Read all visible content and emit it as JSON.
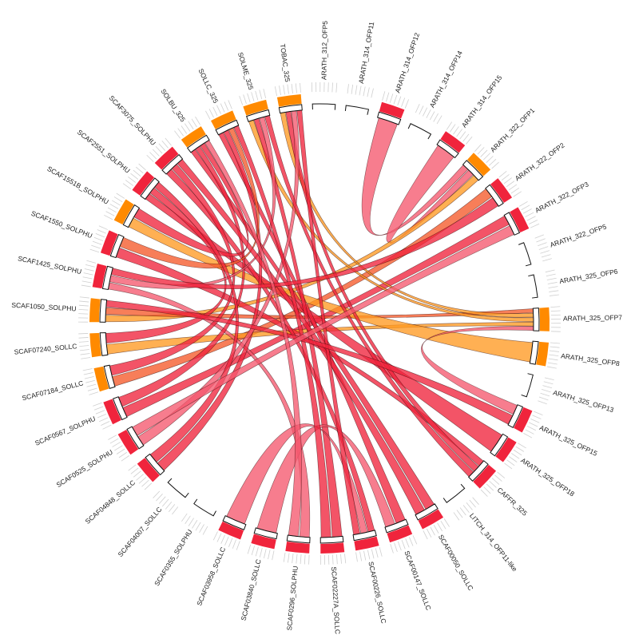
{
  "diagram": {
    "type": "chord",
    "colors": {
      "red": "#f0243c",
      "pink": "#f5586e",
      "orange": "#ff9a22",
      "deep_orange": "#f55a2a",
      "stroke": "#3a0008",
      "band_red": "#f0243c",
      "band_orange": "#ff8a00"
    },
    "segments": [
      {
        "id": "ARATH_312_OFP5",
        "label": "ARATH_312_OFP5",
        "band": "none"
      },
      {
        "id": "ARATH_314_OFP11",
        "label": "ARATH_314_OFP11",
        "band": "none"
      },
      {
        "id": "ARATH_314_OFP12",
        "label": "ARATH_314_OFP12",
        "band": "red"
      },
      {
        "id": "ARATH_314_OFP14",
        "label": "ARATH_314_OFP14",
        "band": "none"
      },
      {
        "id": "ARATH_314_OFP15",
        "label": "ARATH_314_OFP15",
        "band": "red"
      },
      {
        "id": "ARATH_322_OFP1",
        "label": "ARATH_322_OFP1",
        "band": "orange"
      },
      {
        "id": "ARATH_322_OFP2",
        "label": "ARATH_322_OFP2",
        "band": "red"
      },
      {
        "id": "ARATH_322_OFP3",
        "label": "ARATH_322_OFP3",
        "band": "red"
      },
      {
        "id": "ARATH_322_OFP5",
        "label": "ARATH_322_OFP5",
        "band": "none"
      },
      {
        "id": "ARATH_325_OFP6",
        "label": "ARATH_325_OFP6",
        "band": "none"
      },
      {
        "id": "ARATH_325_OFP7",
        "label": "ARATH_325_OFP7",
        "band": "orange"
      },
      {
        "id": "ARATH_325_OFP8",
        "label": "ARATH_325_OFP8",
        "band": "orange"
      },
      {
        "id": "ARATH_325_OFP13",
        "label": "ARATH_325_OFP13",
        "band": "none"
      },
      {
        "id": "ARATH_325_OFP15",
        "label": "ARATH_325_OFP15",
        "band": "red"
      },
      {
        "id": "ARATH_325_OFP18",
        "label": "ARATH_325_OFP18",
        "band": "red"
      },
      {
        "id": "CAFFR_325",
        "label": "CAFFR_325",
        "band": "red"
      },
      {
        "id": "LITCH_314_OFP11-like",
        "label": "LITCH_314_OFP11-like",
        "band": "none"
      },
      {
        "id": "SCAF00050_SOLLC",
        "label": "SCAF00050_SOLLC",
        "band": "red"
      },
      {
        "id": "SCAF00147_SOLLC",
        "label": "SCAF00147_SOLLC",
        "band": "red"
      },
      {
        "id": "SCAF00226_SOLLC",
        "label": "SCAF00226_SOLLC",
        "band": "red"
      },
      {
        "id": "SCAF02227A_SOLLC",
        "label": "SCAF02227A_SOLLC",
        "band": "red"
      },
      {
        "id": "SCAF0296_SOLPHU",
        "label": "SCAF0296_SOLPHU",
        "band": "red"
      },
      {
        "id": "SCAF03840_SOLLC",
        "label": "SCAF03840_SOLLC",
        "band": "red"
      },
      {
        "id": "SCAF03958_SOLLC",
        "label": "SCAF03958_SOLLC",
        "band": "red"
      },
      {
        "id": "SCAF0355_SOLPHU",
        "label": "SCAF0355_SOLPHU",
        "band": "none"
      },
      {
        "id": "SCAF04007_SOLLC",
        "label": "SCAF04007_SOLLC",
        "band": "none"
      },
      {
        "id": "SCAF04848_SOLLC",
        "label": "SCAF04848_SOLLC",
        "band": "red"
      },
      {
        "id": "SCAF0525_SOLPHU",
        "label": "SCAF0525_SOLPHU",
        "band": "red"
      },
      {
        "id": "SCAF0567_SOLPHU",
        "label": "SCAF0567_SOLPHU",
        "band": "red"
      },
      {
        "id": "SCAF07184_SOLLC",
        "label": "SCAF07184_SOLLC",
        "band": "orange"
      },
      {
        "id": "SCAF07240_SOLLC",
        "label": "SCAF07240_SOLLC",
        "band": "orange"
      },
      {
        "id": "SCAF1050_SOLPHU",
        "label": "SCAF1050_SOLPHU",
        "band": "orange"
      },
      {
        "id": "SCAF1425_SOLPHU",
        "label": "SCAF1425_SOLPHU",
        "band": "red"
      },
      {
        "id": "SCAF1550_SOLPHU",
        "label": "SCAF1550_SOLPHU",
        "band": "red"
      },
      {
        "id": "SCAF1551B_SOLPHU",
        "label": "SCAF1551B_SOLPHU",
        "band": "orange"
      },
      {
        "id": "SCAF2551_SOLPHU",
        "label": "SCAF2551_SOLPHU",
        "band": "red"
      },
      {
        "id": "SCAF3075_SOLPHU",
        "label": "SCAF3075_SOLPHU",
        "band": "red"
      },
      {
        "id": "SOLBU_325",
        "label": "SOLBU_325",
        "band": "orange"
      },
      {
        "id": "SOLLC_325",
        "label": "SOLLC_325",
        "band": "orange"
      },
      {
        "id": "SOLME_325",
        "label": "SOLME_325",
        "band": "orange"
      },
      {
        "id": "TOBAC_325",
        "label": "TOBAC_325",
        "band": "orange"
      }
    ],
    "links": [
      {
        "source": "ARATH_314_OFP12",
        "target": "ARATH_322_OFP1",
        "color": "pink"
      },
      {
        "source": "ARATH_314_OFP15",
        "target": "ARATH_322_OFP1",
        "color": "pink"
      },
      {
        "source": "ARATH_322_OFP1",
        "target": "SCAF1050_SOLPHU",
        "color": "orange"
      },
      {
        "source": "ARATH_322_OFP2",
        "target": "SCAF07184_SOLLC",
        "color": "deep_orange"
      },
      {
        "source": "ARATH_322_OFP3",
        "target": "SCAF0567_SOLPHU",
        "color": "red"
      },
      {
        "source": "ARATH_325_OFP7",
        "target": "SCAF1050_SOLPHU",
        "color": "deep_orange"
      },
      {
        "source": "ARATH_325_OFP7",
        "target": "TOBAC_325",
        "color": "orange"
      },
      {
        "source": "ARATH_325_OFP7",
        "target": "SOLME_325",
        "color": "orange"
      },
      {
        "source": "ARATH_325_OFP7",
        "target": "SCAF07240_SOLLC",
        "color": "orange"
      },
      {
        "source": "ARATH_325_OFP8",
        "target": "SCAF1551B_SOLPHU",
        "color": "orange"
      },
      {
        "source": "ARATH_325_OFP15",
        "target": "ARATH_325_OFP7",
        "color": "pink"
      },
      {
        "source": "ARATH_325_OFP18",
        "target": "SCAF2551_SOLPHU",
        "color": "red"
      },
      {
        "source": "CAFFR_325",
        "target": "SCAF1550_SOLPHU",
        "color": "red"
      },
      {
        "source": "CAFFR_325",
        "target": "TOBAC_325",
        "color": "red"
      },
      {
        "source": "SCAF00050_SOLLC",
        "target": "SOLBU_325",
        "color": "red"
      },
      {
        "source": "SCAF00147_SOLLC",
        "target": "SOLLC_325",
        "color": "red"
      },
      {
        "source": "SCAF00226_SOLLC",
        "target": "SCAF3075_SOLPHU",
        "color": "red"
      },
      {
        "source": "SCAF02227A_SOLLC",
        "target": "SOLME_325",
        "color": "red"
      },
      {
        "source": "SCAF0296_SOLPHU",
        "target": "SCAF1425_SOLPHU",
        "color": "pink"
      },
      {
        "source": "SCAF03840_SOLLC",
        "target": "SCAF00147_SOLLC",
        "color": "pink"
      },
      {
        "source": "SCAF03958_SOLLC",
        "target": "SCAF00226_SOLLC",
        "color": "pink"
      },
      {
        "source": "SCAF04848_SOLLC",
        "target": "SOLLC_325",
        "color": "red"
      },
      {
        "source": "SCAF0525_SOLPHU",
        "target": "TOBAC_325",
        "color": "pink"
      },
      {
        "source": "SCAF0567_SOLPHU",
        "target": "SOLBU_325",
        "color": "red"
      },
      {
        "source": "SCAF07184_SOLLC",
        "target": "SCAF3075_SOLPHU",
        "color": "red"
      },
      {
        "source": "SCAF07240_SOLLC",
        "target": "SCAF2551_SOLPHU",
        "color": "red"
      },
      {
        "source": "SCAF1425_SOLPHU",
        "target": "SOLME_325",
        "color": "pink"
      },
      {
        "source": "SCAF1550_SOLPHU",
        "target": "SOLLC_325",
        "color": "deep_orange"
      },
      {
        "source": "SCAF1551B_SOLPHU",
        "target": "SOLBU_325",
        "color": "red"
      },
      {
        "source": "SCAF2551_SOLPHU",
        "target": "SCAF04848_SOLLC",
        "color": "red"
      },
      {
        "source": "SCAF3075_SOLPHU",
        "target": "SCAF00050_SOLLC",
        "color": "red"
      },
      {
        "source": "SOLLC_325",
        "target": "SCAF02227A_SOLLC",
        "color": "red"
      },
      {
        "source": "SOLME_325",
        "target": "CAFFR_325",
        "color": "red"
      },
      {
        "source": "TOBAC_325",
        "target": "SCAF00226_SOLLC",
        "color": "red"
      },
      {
        "source": "SCAF1050_SOLPHU",
        "target": "ARATH_325_OFP15",
        "color": "red"
      },
      {
        "source": "SCAF0525_SOLPHU",
        "target": "ARATH_322_OFP3",
        "color": "pink"
      },
      {
        "source": "SCAF1425_SOLPHU",
        "target": "ARATH_322_OFP2",
        "color": "red"
      },
      {
        "source": "SOLBU_325",
        "target": "SCAF0296_SOLPHU",
        "color": "pink"
      }
    ]
  }
}
